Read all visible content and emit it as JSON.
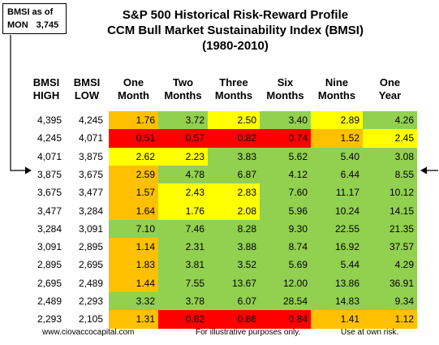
{
  "callout": {
    "line1": "BMSI as of",
    "line2a": "MON",
    "line2b": "3,745"
  },
  "title": {
    "line1": "S&P 500 Historical Risk-Reward Profile",
    "line2": "CCM Bull Market Sustainability Index (BMSI)",
    "line3": "(1980-2010)"
  },
  "headers": {
    "high": [
      "BMSI",
      "HIGH"
    ],
    "low": [
      "BMSI",
      "LOW"
    ],
    "periods": [
      [
        "One",
        "Month"
      ],
      [
        "Two",
        "Months"
      ],
      [
        "Three",
        "Months"
      ],
      [
        "Six",
        "Months"
      ],
      [
        "Nine",
        "Months"
      ],
      [
        "One",
        "Year"
      ]
    ]
  },
  "colors": {
    "g": "#92d050",
    "y": "#ffff00",
    "o": "#ffc000",
    "r": "#ff0000"
  },
  "table": {
    "rows": [
      {
        "high": "4,395",
        "low": "4,245",
        "values": [
          "1.76",
          "3.72",
          "2.50",
          "3.40",
          "2.89",
          "4.26"
        ],
        "colors": [
          "o",
          "g",
          "y",
          "g",
          "y",
          "g"
        ]
      },
      {
        "high": "4,245",
        "low": "4,071",
        "values": [
          "0.51",
          "0.57",
          "0.82",
          "0.74",
          "1.52",
          "2.45"
        ],
        "colors": [
          "r",
          "r",
          "r",
          "r",
          "o",
          "y"
        ]
      },
      {
        "high": "4,071",
        "low": "3,875",
        "values": [
          "2.62",
          "2.23",
          "3.83",
          "5.62",
          "5.40",
          "3.08"
        ],
        "colors": [
          "y",
          "y",
          "g",
          "g",
          "g",
          "g"
        ]
      },
      {
        "high": "3,875",
        "low": "3,675",
        "values": [
          "2.59",
          "4.78",
          "6.87",
          "4.12",
          "6.44",
          "8.55"
        ],
        "colors": [
          "o",
          "g",
          "g",
          "g",
          "g",
          "g"
        ]
      },
      {
        "high": "3,675",
        "low": "3,477",
        "values": [
          "1.57",
          "2.43",
          "2.83",
          "7.60",
          "11.17",
          "10.12"
        ],
        "colors": [
          "o",
          "y",
          "y",
          "g",
          "g",
          "g"
        ]
      },
      {
        "high": "3,477",
        "low": "3,284",
        "values": [
          "1.64",
          "1.76",
          "2.08",
          "5.96",
          "10.24",
          "14.15"
        ],
        "colors": [
          "o",
          "y",
          "y",
          "g",
          "g",
          "g"
        ]
      },
      {
        "high": "3,284",
        "low": "3,091",
        "values": [
          "7.10",
          "7.46",
          "8.28",
          "9.30",
          "22.55",
          "21.35"
        ],
        "colors": [
          "g",
          "g",
          "g",
          "g",
          "g",
          "g"
        ]
      },
      {
        "high": "3,091",
        "low": "2,895",
        "values": [
          "1.14",
          "2.31",
          "3.88",
          "8.74",
          "16.92",
          "37.57"
        ],
        "colors": [
          "o",
          "g",
          "g",
          "g",
          "g",
          "g"
        ]
      },
      {
        "high": "2,895",
        "low": "2,695",
        "values": [
          "1.83",
          "3.81",
          "3.52",
          "5.69",
          "5.44",
          "4.29"
        ],
        "colors": [
          "o",
          "g",
          "g",
          "g",
          "g",
          "g"
        ]
      },
      {
        "high": "2,695",
        "low": "2,489",
        "values": [
          "1.44",
          "7.55",
          "13.67",
          "12.00",
          "13.86",
          "36.91"
        ],
        "colors": [
          "o",
          "g",
          "g",
          "g",
          "g",
          "g"
        ]
      },
      {
        "high": "2,489",
        "low": "2,293",
        "values": [
          "3.32",
          "3.78",
          "6.07",
          "28.54",
          "14.83",
          "9.34"
        ],
        "colors": [
          "g",
          "g",
          "g",
          "g",
          "g",
          "g"
        ]
      },
      {
        "high": "2,293",
        "low": "2,105",
        "values": [
          "1.31",
          "0.82",
          "0.86",
          "0.84",
          "1.41",
          "1.12"
        ],
        "colors": [
          "o",
          "r",
          "r",
          "r",
          "o",
          "o"
        ]
      }
    ]
  },
  "footer": {
    "website": "www.ciovaccocapital.com",
    "illustrative": "For illustrative purposes only.",
    "risk": "Use at own risk."
  }
}
